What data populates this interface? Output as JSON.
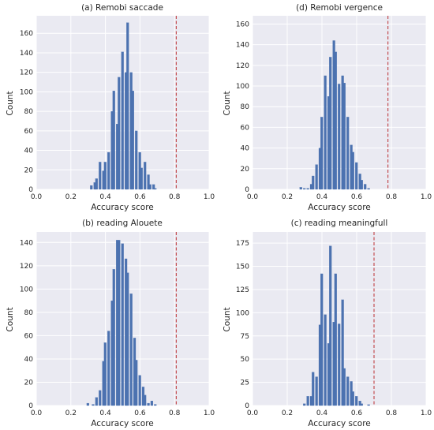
{
  "chart_data": [
    {
      "type": "bar",
      "title": "(a) Remobi saccade",
      "xlabel": "Accuracy score",
      "ylabel": "Count",
      "xlim": [
        0.0,
        1.0
      ],
      "ylim": [
        0,
        178
      ],
      "xticks": [
        "0.0",
        "0.2",
        "0.4",
        "0.6",
        "0.8",
        "1.0"
      ],
      "yticks": [
        "0",
        "20",
        "40",
        "60",
        "80",
        "100",
        "120",
        "140",
        "160"
      ],
      "bin_width": 0.0163,
      "bins": [
        {
          "x": 0.32,
          "value": 4
        },
        {
          "x": 0.34,
          "value": 7
        },
        {
          "x": 0.35,
          "value": 11
        },
        {
          "x": 0.37,
          "value": 28
        },
        {
          "x": 0.39,
          "value": 19
        },
        {
          "x": 0.4,
          "value": 28
        },
        {
          "x": 0.42,
          "value": 38
        },
        {
          "x": 0.44,
          "value": 80
        },
        {
          "x": 0.45,
          "value": 101
        },
        {
          "x": 0.47,
          "value": 67
        },
        {
          "x": 0.48,
          "value": 115
        },
        {
          "x": 0.5,
          "value": 141
        },
        {
          "x": 0.52,
          "value": 120
        },
        {
          "x": 0.53,
          "value": 171
        },
        {
          "x": 0.55,
          "value": 120
        },
        {
          "x": 0.56,
          "value": 101
        },
        {
          "x": 0.58,
          "value": 60
        },
        {
          "x": 0.6,
          "value": 38
        },
        {
          "x": 0.61,
          "value": 22
        },
        {
          "x": 0.63,
          "value": 28
        },
        {
          "x": 0.65,
          "value": 15
        },
        {
          "x": 0.66,
          "value": 5
        },
        {
          "x": 0.68,
          "value": 5
        },
        {
          "x": 0.69,
          "value": 1
        }
      ],
      "threshold": 0.81,
      "colors": {
        "bar": "#4c72b0",
        "threshold": "#c44e52",
        "background": "#eaeaf2",
        "grid": "#ffffff"
      }
    },
    {
      "type": "bar",
      "title": "(d) Remobi vergence",
      "xlabel": "Accuracy score",
      "ylabel": "Count",
      "xlim": [
        0.0,
        1.0
      ],
      "ylim": [
        0,
        168
      ],
      "xticks": [
        "0.0",
        "0.2",
        "0.4",
        "0.6",
        "0.8",
        "1.0"
      ],
      "yticks": [
        "0",
        "20",
        "40",
        "60",
        "80",
        "100",
        "120",
        "140",
        "160"
      ],
      "bin_width": 0.0163,
      "bins": [
        {
          "x": 0.28,
          "value": 2
        },
        {
          "x": 0.3,
          "value": 1
        },
        {
          "x": 0.32,
          "value": 1
        },
        {
          "x": 0.34,
          "value": 5
        },
        {
          "x": 0.35,
          "value": 13
        },
        {
          "x": 0.37,
          "value": 24
        },
        {
          "x": 0.39,
          "value": 40
        },
        {
          "x": 0.4,
          "value": 70
        },
        {
          "x": 0.42,
          "value": 110
        },
        {
          "x": 0.44,
          "value": 90
        },
        {
          "x": 0.45,
          "value": 128
        },
        {
          "x": 0.47,
          "value": 144
        },
        {
          "x": 0.48,
          "value": 133
        },
        {
          "x": 0.5,
          "value": 102
        },
        {
          "x": 0.52,
          "value": 110
        },
        {
          "x": 0.53,
          "value": 103
        },
        {
          "x": 0.55,
          "value": 70
        },
        {
          "x": 0.57,
          "value": 43
        },
        {
          "x": 0.58,
          "value": 36
        },
        {
          "x": 0.6,
          "value": 26
        },
        {
          "x": 0.62,
          "value": 15
        },
        {
          "x": 0.63,
          "value": 9
        },
        {
          "x": 0.65,
          "value": 5
        },
        {
          "x": 0.67,
          "value": 1
        }
      ],
      "threshold": 0.78,
      "colors": {
        "bar": "#4c72b0",
        "threshold": "#c44e52",
        "background": "#eaeaf2",
        "grid": "#ffffff"
      }
    },
    {
      "type": "bar",
      "title": "(b) reading Alouete",
      "xlabel": "Accuracy score",
      "ylabel": "Count",
      "xlim": [
        0.0,
        1.0
      ],
      "ylim": [
        0,
        149
      ],
      "xticks": [
        "0.0",
        "0.2",
        "0.4",
        "0.6",
        "0.8",
        "1.0"
      ],
      "yticks": [
        "0",
        "20",
        "40",
        "60",
        "80",
        "100",
        "120",
        "140"
      ],
      "bin_width": 0.0163,
      "bins": [
        {
          "x": 0.3,
          "value": 2
        },
        {
          "x": 0.33,
          "value": 1
        },
        {
          "x": 0.35,
          "value": 7
        },
        {
          "x": 0.37,
          "value": 13
        },
        {
          "x": 0.39,
          "value": 38
        },
        {
          "x": 0.4,
          "value": 54
        },
        {
          "x": 0.42,
          "value": 64
        },
        {
          "x": 0.44,
          "value": 90
        },
        {
          "x": 0.45,
          "value": 117
        },
        {
          "x": 0.47,
          "value": 142
        },
        {
          "x": 0.48,
          "value": 142
        },
        {
          "x": 0.5,
          "value": 139
        },
        {
          "x": 0.52,
          "value": 126
        },
        {
          "x": 0.53,
          "value": 114
        },
        {
          "x": 0.55,
          "value": 96
        },
        {
          "x": 0.57,
          "value": 58
        },
        {
          "x": 0.58,
          "value": 39
        },
        {
          "x": 0.6,
          "value": 26
        },
        {
          "x": 0.62,
          "value": 16
        },
        {
          "x": 0.63,
          "value": 9
        },
        {
          "x": 0.65,
          "value": 2
        },
        {
          "x": 0.67,
          "value": 4
        },
        {
          "x": 0.69,
          "value": 1
        }
      ],
      "threshold": 0.81,
      "colors": {
        "bar": "#4c72b0",
        "threshold": "#c44e52",
        "background": "#eaeaf2",
        "grid": "#ffffff"
      }
    },
    {
      "type": "bar",
      "title": "(c) reading meaningfull",
      "xlabel": "Accuracy score",
      "ylabel": "Count",
      "xlim": [
        0.0,
        1.0
      ],
      "ylim": [
        0,
        187
      ],
      "xticks": [
        "0.0",
        "0.2",
        "0.4",
        "0.6",
        "0.8",
        "1.0"
      ],
      "yticks": [
        "0",
        "25",
        "50",
        "75",
        "100",
        "125",
        "150",
        "175"
      ],
      "bin_width": 0.0163,
      "bins": [
        {
          "x": 0.3,
          "value": 2
        },
        {
          "x": 0.32,
          "value": 10
        },
        {
          "x": 0.34,
          "value": 10
        },
        {
          "x": 0.35,
          "value": 36
        },
        {
          "x": 0.37,
          "value": 31
        },
        {
          "x": 0.39,
          "value": 87
        },
        {
          "x": 0.4,
          "value": 142
        },
        {
          "x": 0.42,
          "value": 98
        },
        {
          "x": 0.44,
          "value": 67
        },
        {
          "x": 0.45,
          "value": 172
        },
        {
          "x": 0.47,
          "value": 90
        },
        {
          "x": 0.48,
          "value": 142
        },
        {
          "x": 0.5,
          "value": 88
        },
        {
          "x": 0.52,
          "value": 114
        },
        {
          "x": 0.53,
          "value": 40
        },
        {
          "x": 0.55,
          "value": 31
        },
        {
          "x": 0.57,
          "value": 26
        },
        {
          "x": 0.58,
          "value": 15
        },
        {
          "x": 0.6,
          "value": 10
        },
        {
          "x": 0.62,
          "value": 5
        },
        {
          "x": 0.63,
          "value": 2
        },
        {
          "x": 0.67,
          "value": 1
        }
      ],
      "threshold": 0.7,
      "colors": {
        "bar": "#4c72b0",
        "threshold": "#c44e52",
        "background": "#eaeaf2",
        "grid": "#ffffff"
      }
    }
  ]
}
